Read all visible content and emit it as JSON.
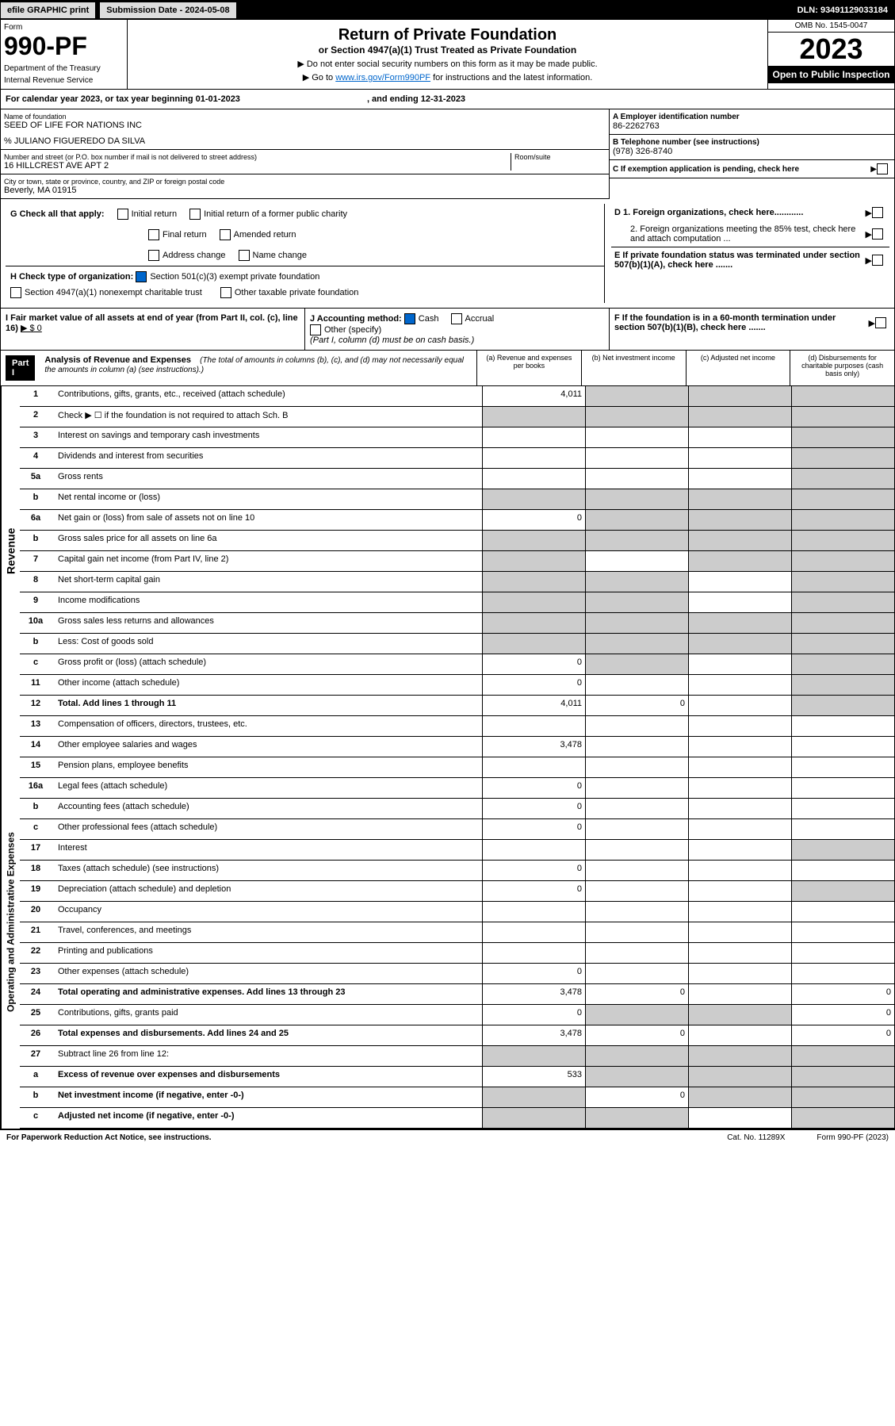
{
  "top": {
    "efile": "efile GRAPHIC print",
    "submission": "Submission Date - 2024-05-08",
    "dln": "DLN: 93491129033184"
  },
  "header": {
    "form_label": "Form",
    "form_number": "990-PF",
    "dept1": "Department of the Treasury",
    "dept2": "Internal Revenue Service",
    "title": "Return of Private Foundation",
    "subtitle": "or Section 4947(a)(1) Trust Treated as Private Foundation",
    "note1": "▶ Do not enter social security numbers on this form as it may be made public.",
    "note2_pre": "▶ Go to ",
    "note2_link": "www.irs.gov/Form990PF",
    "note2_post": " for instructions and the latest information.",
    "omb": "OMB No. 1545-0047",
    "year": "2023",
    "open": "Open to Public Inspection"
  },
  "cal_year": {
    "pre": "For calendar year 2023, or tax year beginning ",
    "begin": "01-01-2023",
    "mid": ", and ending ",
    "end": "12-31-2023"
  },
  "info": {
    "name_label": "Name of foundation",
    "name": "SEED OF LIFE FOR NATIONS INC",
    "care_of": "% JULIANO FIGUEREDO DA SILVA",
    "addr_label": "Number and street (or P.O. box number if mail is not delivered to street address)",
    "addr": "16 HILLCREST AVE APT 2",
    "room_label": "Room/suite",
    "city_label": "City or town, state or province, country, and ZIP or foreign postal code",
    "city": "Beverly, MA  01915",
    "a_label": "A Employer identification number",
    "a_value": "86-2262763",
    "b_label": "B Telephone number (see instructions)",
    "b_value": "(978) 326-8740",
    "c_label": "C If exemption application is pending, check here",
    "d1_label": "D 1. Foreign organizations, check here............",
    "d2_label": "2. Foreign organizations meeting the 85% test, check here and attach computation ...",
    "e_label": "E  If private foundation status was terminated under section 507(b)(1)(A), check here .......",
    "f_label": "F  If the foundation is in a 60-month termination under section 507(b)(1)(B), check here ......."
  },
  "g": {
    "label": "G Check all that apply:",
    "initial": "Initial return",
    "initial_former": "Initial return of a former public charity",
    "final": "Final return",
    "amended": "Amended return",
    "address": "Address change",
    "name_change": "Name change"
  },
  "h": {
    "label": "H Check type of organization:",
    "501c3": "Section 501(c)(3) exempt private foundation",
    "4947": "Section 4947(a)(1) nonexempt charitable trust",
    "other": "Other taxable private foundation"
  },
  "i": {
    "label": "I Fair market value of all assets at end of year (from Part II, col. (c), line 16)",
    "value": "▶ $  0"
  },
  "j": {
    "label": "J Accounting method:",
    "cash": "Cash",
    "accrual": "Accrual",
    "other": "Other (specify)",
    "note": "(Part I, column (d) must be on cash basis.)"
  },
  "part1": {
    "label": "Part I",
    "title": "Analysis of Revenue and Expenses",
    "desc": "(The total of amounts in columns (b), (c), and (d) may not necessarily equal the amounts in column (a) (see instructions).)",
    "col_a": "(a) Revenue and expenses per books",
    "col_b": "(b) Net investment income",
    "col_c": "(c) Adjusted net income",
    "col_d": "(d) Disbursements for charitable purposes (cash basis only)"
  },
  "sections": {
    "revenue": "Revenue",
    "expenses": "Operating and Administrative Expenses"
  },
  "lines": [
    {
      "num": "1",
      "desc": "Contributions, gifts, grants, etc., received (attach schedule)",
      "a": "4,011",
      "b": "shaded",
      "c": "shaded",
      "d": "shaded"
    },
    {
      "num": "2",
      "desc": "Check ▶ ☐ if the foundation is not required to attach Sch. B",
      "a": "shaded",
      "b": "shaded",
      "c": "shaded",
      "d": "shaded"
    },
    {
      "num": "3",
      "desc": "Interest on savings and temporary cash investments",
      "a": "",
      "b": "",
      "c": "",
      "d": "shaded"
    },
    {
      "num": "4",
      "desc": "Dividends and interest from securities",
      "a": "",
      "b": "",
      "c": "",
      "d": "shaded"
    },
    {
      "num": "5a",
      "desc": "Gross rents",
      "a": "",
      "b": "",
      "c": "",
      "d": "shaded"
    },
    {
      "num": "b",
      "desc": "Net rental income or (loss)",
      "a": "shaded",
      "b": "shaded",
      "c": "shaded",
      "d": "shaded"
    },
    {
      "num": "6a",
      "desc": "Net gain or (loss) from sale of assets not on line 10",
      "a": "0",
      "b": "shaded",
      "c": "shaded",
      "d": "shaded"
    },
    {
      "num": "b",
      "desc": "Gross sales price for all assets on line 6a",
      "a": "shaded",
      "b": "shaded",
      "c": "shaded",
      "d": "shaded"
    },
    {
      "num": "7",
      "desc": "Capital gain net income (from Part IV, line 2)",
      "a": "shaded",
      "b": "",
      "c": "shaded",
      "d": "shaded"
    },
    {
      "num": "8",
      "desc": "Net short-term capital gain",
      "a": "shaded",
      "b": "shaded",
      "c": "",
      "d": "shaded"
    },
    {
      "num": "9",
      "desc": "Income modifications",
      "a": "shaded",
      "b": "shaded",
      "c": "",
      "d": "shaded"
    },
    {
      "num": "10a",
      "desc": "Gross sales less returns and allowances",
      "a": "shaded",
      "b": "shaded",
      "c": "shaded",
      "d": "shaded"
    },
    {
      "num": "b",
      "desc": "Less: Cost of goods sold",
      "a": "shaded",
      "b": "shaded",
      "c": "shaded",
      "d": "shaded"
    },
    {
      "num": "c",
      "desc": "Gross profit or (loss) (attach schedule)",
      "a": "0",
      "b": "shaded",
      "c": "",
      "d": "shaded"
    },
    {
      "num": "11",
      "desc": "Other income (attach schedule)",
      "a": "0",
      "b": "",
      "c": "",
      "d": "shaded"
    },
    {
      "num": "12",
      "desc": "Total. Add lines 1 through 11",
      "bold": true,
      "a": "4,011",
      "b": "0",
      "c": "",
      "d": "shaded"
    }
  ],
  "expense_lines": [
    {
      "num": "13",
      "desc": "Compensation of officers, directors, trustees, etc.",
      "a": "",
      "b": "",
      "c": "",
      "d": ""
    },
    {
      "num": "14",
      "desc": "Other employee salaries and wages",
      "a": "3,478",
      "b": "",
      "c": "",
      "d": ""
    },
    {
      "num": "15",
      "desc": "Pension plans, employee benefits",
      "a": "",
      "b": "",
      "c": "",
      "d": ""
    },
    {
      "num": "16a",
      "desc": "Legal fees (attach schedule)",
      "a": "0",
      "b": "",
      "c": "",
      "d": ""
    },
    {
      "num": "b",
      "desc": "Accounting fees (attach schedule)",
      "a": "0",
      "b": "",
      "c": "",
      "d": ""
    },
    {
      "num": "c",
      "desc": "Other professional fees (attach schedule)",
      "a": "0",
      "b": "",
      "c": "",
      "d": ""
    },
    {
      "num": "17",
      "desc": "Interest",
      "a": "",
      "b": "",
      "c": "",
      "d": "shaded"
    },
    {
      "num": "18",
      "desc": "Taxes (attach schedule) (see instructions)",
      "a": "0",
      "b": "",
      "c": "",
      "d": ""
    },
    {
      "num": "19",
      "desc": "Depreciation (attach schedule) and depletion",
      "a": "0",
      "b": "",
      "c": "",
      "d": "shaded"
    },
    {
      "num": "20",
      "desc": "Occupancy",
      "a": "",
      "b": "",
      "c": "",
      "d": ""
    },
    {
      "num": "21",
      "desc": "Travel, conferences, and meetings",
      "a": "",
      "b": "",
      "c": "",
      "d": ""
    },
    {
      "num": "22",
      "desc": "Printing and publications",
      "a": "",
      "b": "",
      "c": "",
      "d": ""
    },
    {
      "num": "23",
      "desc": "Other expenses (attach schedule)",
      "a": "0",
      "b": "",
      "c": "",
      "d": ""
    },
    {
      "num": "24",
      "desc": "Total operating and administrative expenses. Add lines 13 through 23",
      "bold": true,
      "a": "3,478",
      "b": "0",
      "c": "",
      "d": "0"
    },
    {
      "num": "25",
      "desc": "Contributions, gifts, grants paid",
      "a": "0",
      "b": "shaded",
      "c": "shaded",
      "d": "0"
    },
    {
      "num": "26",
      "desc": "Total expenses and disbursements. Add lines 24 and 25",
      "bold": true,
      "a": "3,478",
      "b": "0",
      "c": "",
      "d": "0"
    },
    {
      "num": "27",
      "desc": "Subtract line 26 from line 12:",
      "a": "shaded",
      "b": "shaded",
      "c": "shaded",
      "d": "shaded"
    },
    {
      "num": "a",
      "desc": "Excess of revenue over expenses and disbursements",
      "bold": true,
      "a": "533",
      "b": "shaded",
      "c": "shaded",
      "d": "shaded"
    },
    {
      "num": "b",
      "desc": "Net investment income (if negative, enter -0-)",
      "bold": true,
      "a": "shaded",
      "b": "0",
      "c": "shaded",
      "d": "shaded"
    },
    {
      "num": "c",
      "desc": "Adjusted net income (if negative, enter -0-)",
      "bold": true,
      "a": "shaded",
      "b": "shaded",
      "c": "",
      "d": "shaded"
    }
  ],
  "footer": {
    "left": "For Paperwork Reduction Act Notice, see instructions.",
    "cat": "Cat. No. 11289X",
    "form": "Form 990-PF (2023)"
  }
}
